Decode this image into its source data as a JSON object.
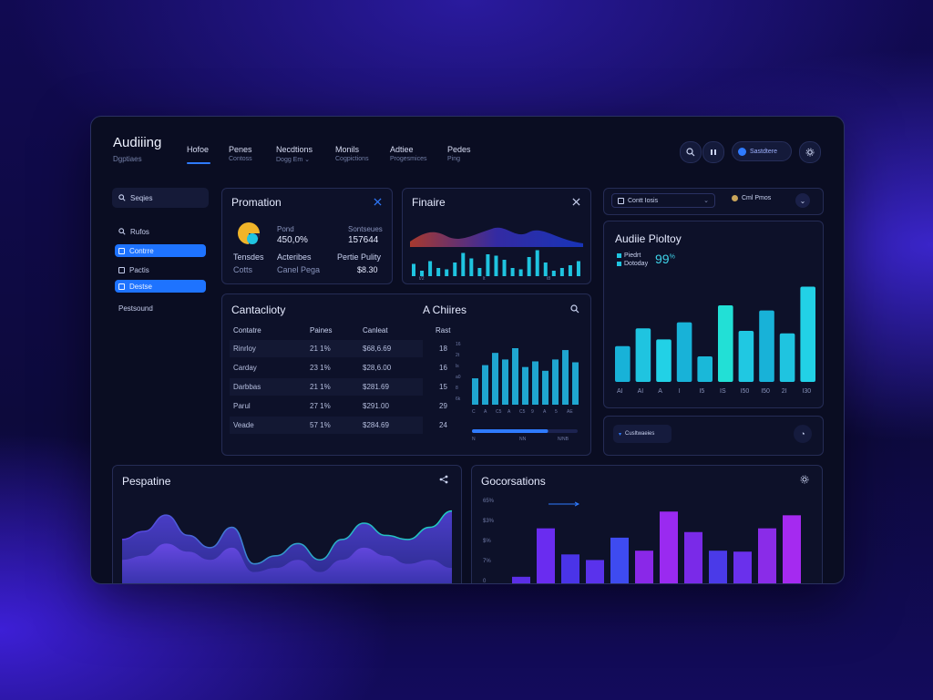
{
  "header": {
    "brand": "Audiiing",
    "brand_sub": "Dgptiaes",
    "nav": [
      {
        "label": "Hofoe",
        "sub": ""
      },
      {
        "label": "Penes",
        "sub": "Contoss"
      },
      {
        "label": "Necdtions",
        "sub": "Dogg Em ⌄"
      },
      {
        "label": "Monils",
        "sub": "Cogpictions"
      },
      {
        "label": "Adtiee",
        "sub": "Progesmices"
      },
      {
        "label": "Pedes",
        "sub": "Ping"
      }
    ],
    "account_label": "Sastdtere"
  },
  "sidebar": {
    "search_placeholder": "Seqies",
    "items": [
      {
        "label": "Rufos",
        "icon": "search-icon",
        "active": false
      },
      {
        "label": "Contrre",
        "icon": "grid-icon",
        "active": true
      },
      {
        "label": "Pactis",
        "icon": "grid-icon",
        "active": false
      },
      {
        "label": "Destse",
        "icon": "grid-icon",
        "active": true
      },
      {
        "label": "Pestsound",
        "icon": "",
        "active": false
      }
    ]
  },
  "promotion": {
    "title": "Promation",
    "col1_label": "Pond",
    "col1_value": "450,0%",
    "col2_label": "Sontseues",
    "col2_value": "157644",
    "row_labels": [
      "Tensdes",
      "Acteribes",
      "Pertie Pulity"
    ],
    "row_values": [
      "Cotts",
      "Canel Pega",
      "$8.30"
    ]
  },
  "finance": {
    "title": "Finaire",
    "bars": [
      0.45,
      0.2,
      0.55,
      0.3,
      0.25,
      0.5,
      0.85,
      0.65,
      0.3,
      0.8,
      0.75,
      0.6,
      0.3,
      0.25,
      0.7,
      0.95,
      0.5,
      0.2,
      0.3,
      0.4,
      0.55
    ],
    "ticks": [
      "t/2",
      "lt",
      "t8"
    ]
  },
  "card_top_right": {
    "dropdown_label": "Contt Iosis",
    "user_label": "Cml Pmos"
  },
  "policy": {
    "title": "Audiie Pioltoy",
    "legend": [
      "Piedrt",
      "Dotoday"
    ],
    "value": "99",
    "value_sup": "%",
    "bars": [
      {
        "value": 42,
        "color": "#18b2d8"
      },
      {
        "value": 63,
        "color": "#1fc4e0"
      },
      {
        "value": 50,
        "color": "#22d1e6"
      },
      {
        "value": 70,
        "color": "#18b2d8"
      },
      {
        "value": 30,
        "color": "#1ab8d9"
      },
      {
        "value": 90,
        "color": "#22e0d6"
      },
      {
        "value": 60,
        "color": "#20c8e2"
      },
      {
        "value": 84,
        "color": "#18b2d8"
      },
      {
        "value": 57,
        "color": "#1fc4e0"
      },
      {
        "value": 112,
        "color": "#22d1e6"
      }
    ],
    "ticks": [
      "AI",
      "AI",
      "A",
      "I",
      "I5",
      "IS",
      "I50",
      "I50",
      "2I",
      "I30"
    ],
    "badge": "Cusltwaeies"
  },
  "capacity": {
    "title": "Cantaclioty",
    "subtitle": "A Chiires",
    "columns": [
      "Contatre",
      "Paines",
      "Canleat",
      "Rast"
    ],
    "rows": [
      {
        "name": "Rinrloy",
        "c1": "21 1%",
        "c2": "$68,6.69",
        "c3": "18"
      },
      {
        "name": "Carday",
        "c1": "23 1%",
        "c2": "$28,6.00",
        "c3": "16"
      },
      {
        "name": "Darbbas",
        "c1": "21 1%",
        "c2": "$281.69",
        "c3": "15"
      },
      {
        "name": "Parul",
        "c1": "27 1%",
        "c2": "$291.00",
        "c3": "29"
      },
      {
        "name": "Veade",
        "c1": "57 1%",
        "c2": "$284.69",
        "c3": "24"
      }
    ],
    "chart_bars": [
      28,
      42,
      55,
      48,
      60,
      40,
      46,
      36,
      48,
      58,
      45
    ],
    "chart_yticks": [
      "16",
      "2t",
      "ls",
      "a0",
      "8",
      "6k"
    ],
    "chart_xticks": [
      "C",
      "A",
      "C5",
      "A",
      "C5",
      "9",
      "A",
      "5",
      "AE"
    ],
    "progress": 0.72,
    "progress_ticks": [
      "N",
      "NN",
      "N/NB"
    ]
  },
  "bottom_left": {
    "title": "Pespatine",
    "series": [
      {
        "name": "",
        "values": [
          0.55,
          0.65,
          0.85,
          0.6,
          0.45,
          0.7,
          0.25,
          0.35,
          0.5,
          0.3,
          0.55,
          0.75,
          0.6,
          0.55,
          0.7,
          0.9
        ]
      },
      {
        "name": "",
        "values": [
          0.3,
          0.35,
          0.5,
          0.4,
          0.3,
          0.45,
          0.15,
          0.2,
          0.3,
          0.15,
          0.3,
          0.45,
          0.35,
          0.25,
          0.3,
          0.2
        ]
      }
    ]
  },
  "bottom_right": {
    "title": "Gocorsations",
    "yticks": [
      "65%",
      "$3%",
      "$%",
      "7%",
      "0"
    ],
    "bars": [
      {
        "value": 8,
        "color": "#5b2ee6"
      },
      {
        "value": 60,
        "color": "#6a2cf0"
      },
      {
        "value": 32,
        "color": "#4a34e8"
      },
      {
        "value": 26,
        "color": "#5a32ec"
      },
      {
        "value": 50,
        "color": "#3e4bf0"
      },
      {
        "value": 36,
        "color": "#8a28e8"
      },
      {
        "value": 78,
        "color": "#9a2af0"
      },
      {
        "value": 56,
        "color": "#7a2ae8"
      },
      {
        "value": 36,
        "color": "#4a3ae8"
      },
      {
        "value": 35,
        "color": "#6a30ec"
      },
      {
        "value": 60,
        "color": "#8a2ce8"
      },
      {
        "value": 74,
        "color": "#a52af0"
      }
    ],
    "ymax": 90
  },
  "colors": {
    "accent": "#2f7bff",
    "teal": "#1fc4e0",
    "purple": "#8a2ce8"
  }
}
